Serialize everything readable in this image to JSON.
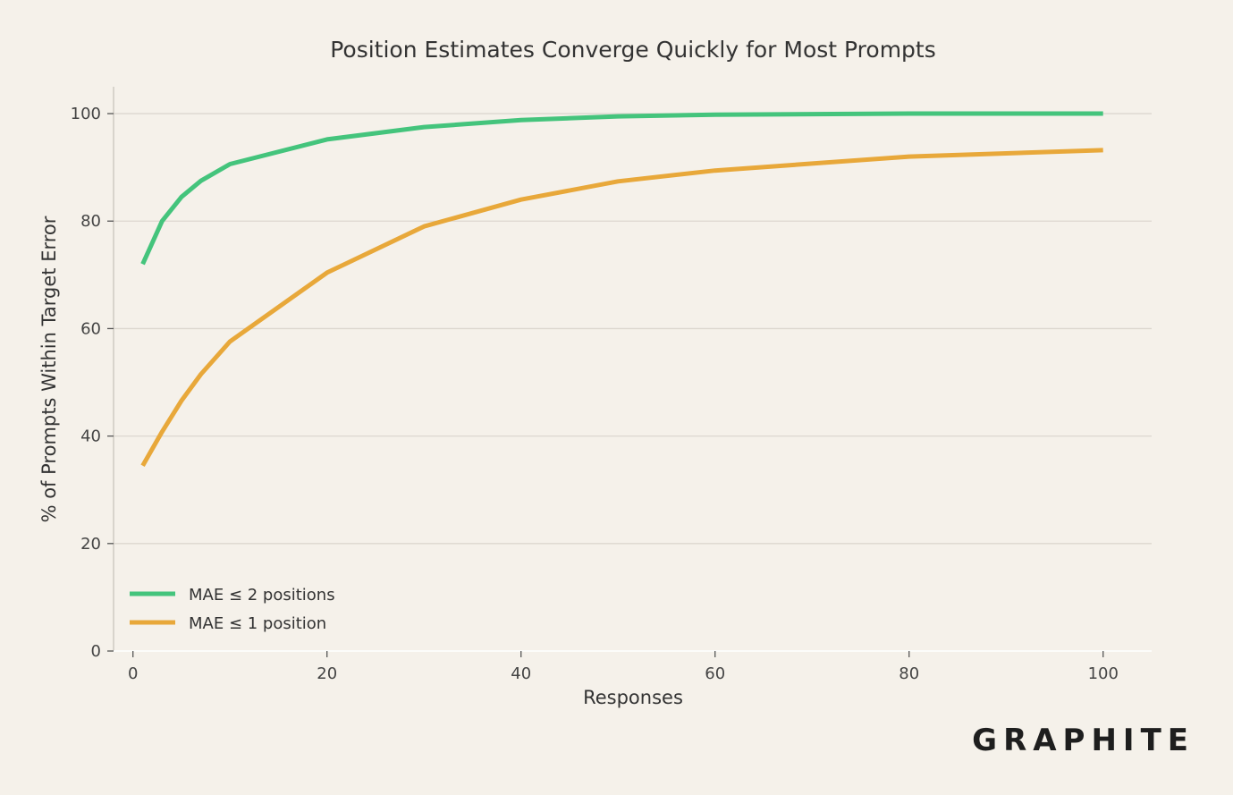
{
  "brand": "GRAPHITE",
  "chart_data": {
    "type": "line",
    "title": "Position Estimates Converge Quickly for Most Prompts",
    "xlabel": "Responses",
    "ylabel": "% of Prompts Within Target Error",
    "xlim": [
      -2,
      105
    ],
    "ylim": [
      0,
      105
    ],
    "xticks": [
      0,
      20,
      40,
      60,
      80,
      100
    ],
    "yticks": [
      0,
      20,
      40,
      60,
      80,
      100
    ],
    "grid": "horizontal",
    "legend_position": "bottom-left",
    "series": [
      {
        "name": "MAE ≤ 2 positions",
        "color": "#44c47c",
        "x": [
          1,
          3,
          5,
          7,
          10,
          20,
          30,
          40,
          50,
          60,
          80,
          100
        ],
        "y": [
          72,
          80,
          84.5,
          87.5,
          90.6,
          95.2,
          97.5,
          98.8,
          99.5,
          99.8,
          100,
          100
        ]
      },
      {
        "name": "MAE ≤ 1 position",
        "color": "#e8a83a",
        "x": [
          1,
          3,
          5,
          7,
          10,
          20,
          30,
          40,
          50,
          60,
          80,
          100
        ],
        "y": [
          34.5,
          40.8,
          46.6,
          51.5,
          57.6,
          70.4,
          79,
          84,
          87.4,
          89.4,
          92,
          93.2
        ]
      }
    ]
  }
}
